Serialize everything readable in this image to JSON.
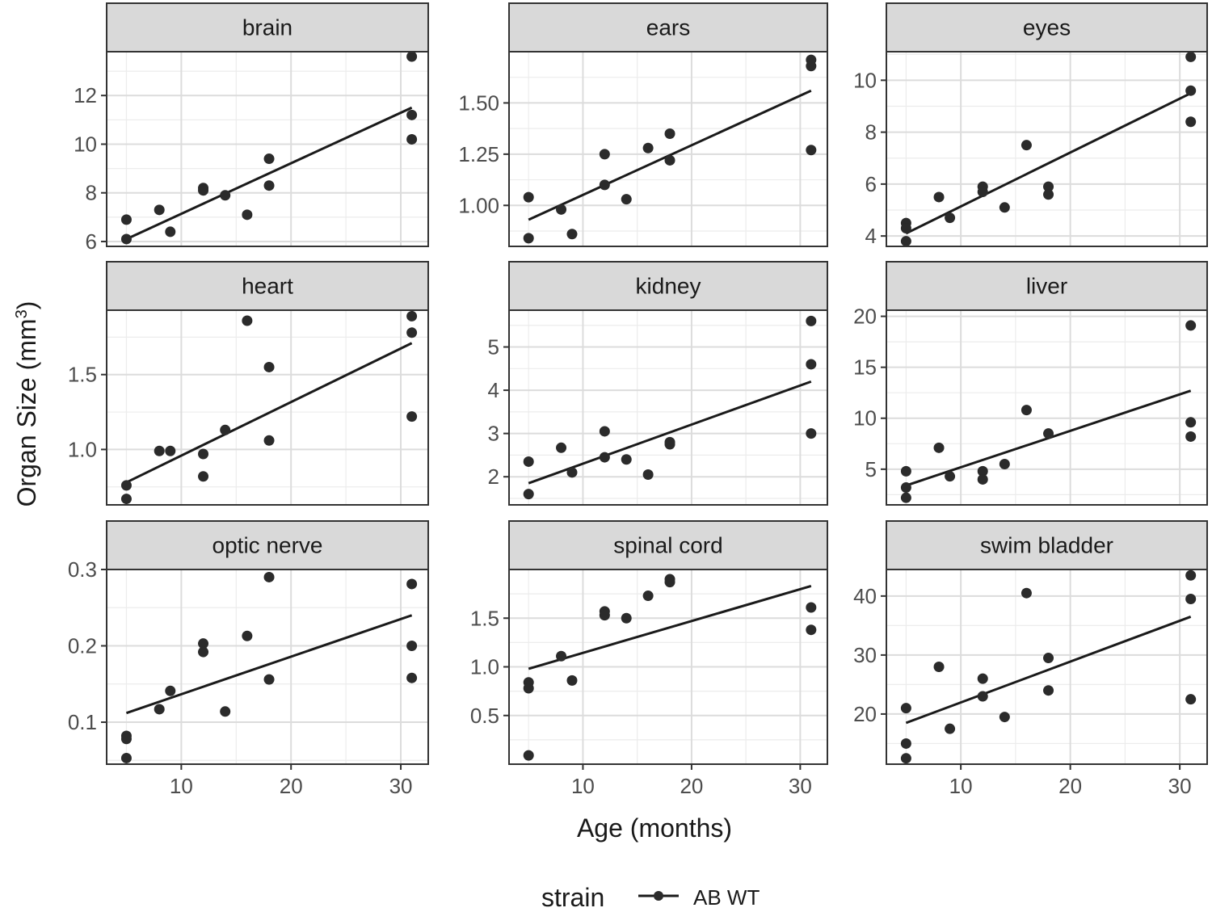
{
  "chart_data": {
    "type": "scatter",
    "facet_layout": "3x3",
    "xlabel": "Age (months)",
    "ylabel": "Organ Size (mm",
    "ylabel_superscript": "3",
    "ylabel_close": ")",
    "xlim": [
      3.2,
      32.5
    ],
    "x_ticks": [
      10,
      20,
      30
    ],
    "x_tick_labels": [
      "10",
      "20",
      "30"
    ],
    "grid": true,
    "legend": {
      "title": "strain",
      "placement": "bottom",
      "entries": [
        "AB WT"
      ]
    },
    "panels": [
      {
        "name": "brain",
        "ylim": [
          5.8,
          13.8
        ],
        "y_ticks": [
          6,
          8,
          10,
          12
        ],
        "y_tick_labels": [
          "6",
          "8",
          "10",
          "12"
        ],
        "fit": [
          [
            5,
            6.1
          ],
          [
            31,
            11.5
          ]
        ],
        "points": [
          [
            5,
            6.9
          ],
          [
            5,
            6.1
          ],
          [
            8,
            7.3
          ],
          [
            9,
            6.4
          ],
          [
            12,
            8.2
          ],
          [
            12,
            8.1
          ],
          [
            14,
            7.9
          ],
          [
            16,
            7.1
          ],
          [
            18,
            9.4
          ],
          [
            18,
            8.3
          ],
          [
            31,
            13.6
          ],
          [
            31,
            11.2
          ],
          [
            31,
            10.2
          ]
        ]
      },
      {
        "name": "ears",
        "ylim": [
          0.8,
          1.75
        ],
        "y_ticks": [
          1.0,
          1.25,
          1.5
        ],
        "y_tick_labels": [
          "1.00",
          "1.25",
          "1.50"
        ],
        "fit": [
          [
            5,
            0.93
          ],
          [
            31,
            1.56
          ]
        ],
        "points": [
          [
            5,
            1.04
          ],
          [
            5,
            0.84
          ],
          [
            8,
            0.98
          ],
          [
            9,
            0.86
          ],
          [
            12,
            1.25
          ],
          [
            12,
            1.1
          ],
          [
            14,
            1.03
          ],
          [
            16,
            1.28
          ],
          [
            18,
            1.35
          ],
          [
            18,
            1.22
          ],
          [
            31,
            1.71
          ],
          [
            31,
            1.68
          ],
          [
            31,
            1.27
          ]
        ]
      },
      {
        "name": "eyes",
        "ylim": [
          3.6,
          11.1
        ],
        "y_ticks": [
          4,
          6,
          8,
          10
        ],
        "y_tick_labels": [
          "4",
          "6",
          "8",
          "10"
        ],
        "fit": [
          [
            5,
            4.1
          ],
          [
            31,
            9.5
          ]
        ],
        "points": [
          [
            5,
            4.5
          ],
          [
            5,
            4.3
          ],
          [
            5,
            3.8
          ],
          [
            8,
            5.5
          ],
          [
            9,
            4.7
          ],
          [
            12,
            5.9
          ],
          [
            12,
            5.7
          ],
          [
            14,
            5.1
          ],
          [
            16,
            7.5
          ],
          [
            18,
            5.9
          ],
          [
            18,
            5.6
          ],
          [
            31,
            10.9
          ],
          [
            31,
            9.6
          ],
          [
            31,
            8.4
          ]
        ]
      },
      {
        "name": "heart",
        "ylim": [
          0.63,
          1.93
        ],
        "y_ticks": [
          1.0,
          1.5
        ],
        "y_tick_labels": [
          "1.0",
          "1.5"
        ],
        "fit": [
          [
            5,
            0.78
          ],
          [
            31,
            1.71
          ]
        ],
        "points": [
          [
            5,
            0.76
          ],
          [
            5,
            0.67
          ],
          [
            8,
            0.99
          ],
          [
            9,
            0.99
          ],
          [
            12,
            0.97
          ],
          [
            12,
            0.82
          ],
          [
            14,
            1.13
          ],
          [
            16,
            1.86
          ],
          [
            18,
            1.55
          ],
          [
            18,
            1.06
          ],
          [
            31,
            1.89
          ],
          [
            31,
            1.78
          ],
          [
            31,
            1.22
          ]
        ]
      },
      {
        "name": "kidney",
        "ylim": [
          1.35,
          5.85
        ],
        "y_ticks": [
          2,
          3,
          4,
          5
        ],
        "y_tick_labels": [
          "2",
          "3",
          "4",
          "5"
        ],
        "fit": [
          [
            5,
            1.85
          ],
          [
            31,
            4.2
          ]
        ],
        "points": [
          [
            5,
            2.35
          ],
          [
            5,
            1.6
          ],
          [
            8,
            2.67
          ],
          [
            9,
            2.1
          ],
          [
            12,
            3.05
          ],
          [
            12,
            2.45
          ],
          [
            14,
            2.4
          ],
          [
            16,
            2.05
          ],
          [
            18,
            2.8
          ],
          [
            18,
            2.75
          ],
          [
            31,
            5.6
          ],
          [
            31,
            4.6
          ],
          [
            31,
            3.0
          ]
        ]
      },
      {
        "name": "liver",
        "ylim": [
          1.5,
          20.6
        ],
        "y_ticks": [
          5,
          10,
          15,
          20
        ],
        "y_tick_labels": [
          "5",
          "10",
          "15",
          "20"
        ],
        "fit": [
          [
            5,
            3.4
          ],
          [
            31,
            12.7
          ]
        ],
        "points": [
          [
            5,
            4.8
          ],
          [
            5,
            3.2
          ],
          [
            5,
            2.2
          ],
          [
            8,
            7.1
          ],
          [
            9,
            4.3
          ],
          [
            12,
            4.8
          ],
          [
            12,
            4.0
          ],
          [
            14,
            5.5
          ],
          [
            16,
            10.8
          ],
          [
            18,
            8.5
          ],
          [
            31,
            19.1
          ],
          [
            31,
            9.6
          ],
          [
            31,
            8.2
          ]
        ]
      },
      {
        "name": "optic nerve",
        "ylim": [
          0.045,
          0.3
        ],
        "y_ticks": [
          0.1,
          0.2,
          0.3
        ],
        "y_tick_labels": [
          "0.1",
          "0.2",
          "0.3"
        ],
        "fit": [
          [
            5,
            0.112
          ],
          [
            31,
            0.24
          ]
        ],
        "points": [
          [
            5,
            0.082
          ],
          [
            5,
            0.078
          ],
          [
            5,
            0.053
          ],
          [
            8,
            0.117
          ],
          [
            9,
            0.141
          ],
          [
            12,
            0.203
          ],
          [
            12,
            0.192
          ],
          [
            14,
            0.114
          ],
          [
            16,
            0.213
          ],
          [
            18,
            0.29
          ],
          [
            18,
            0.156
          ],
          [
            31,
            0.281
          ],
          [
            31,
            0.2
          ],
          [
            31,
            0.158
          ]
        ]
      },
      {
        "name": "spinal cord",
        "ylim": [
          0.0,
          2.0
        ],
        "y_ticks": [
          0.5,
          1.0,
          1.5
        ],
        "y_tick_labels": [
          "0.5",
          "1.0",
          "1.5"
        ],
        "fit": [
          [
            5,
            0.98
          ],
          [
            31,
            1.83
          ]
        ],
        "points": [
          [
            5,
            0.84
          ],
          [
            5,
            0.78
          ],
          [
            5,
            0.09
          ],
          [
            8,
            1.11
          ],
          [
            9,
            0.86
          ],
          [
            12,
            1.57
          ],
          [
            12,
            1.53
          ],
          [
            14,
            1.5
          ],
          [
            16,
            1.73
          ],
          [
            18,
            1.9
          ],
          [
            18,
            1.87
          ],
          [
            31,
            1.61
          ],
          [
            31,
            1.38
          ]
        ]
      },
      {
        "name": "swim bladder",
        "ylim": [
          11.5,
          44.5
        ],
        "y_ticks": [
          20,
          30,
          40
        ],
        "y_tick_labels": [
          "20",
          "30",
          "40"
        ],
        "fit": [
          [
            5,
            18.5
          ],
          [
            31,
            36.5
          ]
        ],
        "points": [
          [
            5,
            21.0
          ],
          [
            5,
            15.0
          ],
          [
            5,
            12.5
          ],
          [
            8,
            28.0
          ],
          [
            9,
            17.5
          ],
          [
            12,
            26.0
          ],
          [
            12,
            23.0
          ],
          [
            14,
            19.5
          ],
          [
            16,
            40.5
          ],
          [
            18,
            29.5
          ],
          [
            18,
            24.0
          ],
          [
            31,
            43.5
          ],
          [
            31,
            39.5
          ],
          [
            31,
            22.5
          ]
        ]
      }
    ]
  }
}
